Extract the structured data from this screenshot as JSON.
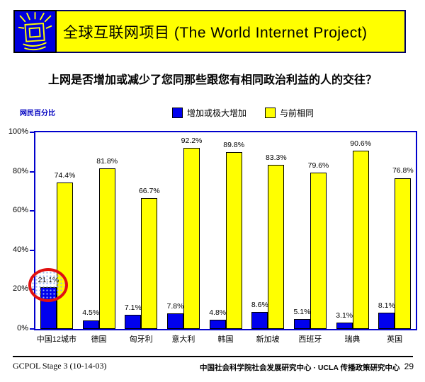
{
  "slide": {
    "header": {
      "title": "全球互联网项目 (The World Internet Project)",
      "logo_icon": "monitor-with-rays"
    },
    "question": "上网是否增加或减少了您同那些跟您有相同政治利益的人的交往？",
    "footer": {
      "left": "GCPOL Stage 3 (10-14-03)",
      "center": "中国社会科学院社会发展研究中心 · UCLA 传播政策研究中心",
      "page_number": "29"
    }
  },
  "chart_data": {
    "type": "bar",
    "title": "",
    "ylabel": "网民百分比",
    "xlabel": "",
    "categories": [
      "中国12城市",
      "德国",
      "匈牙利",
      "意大利",
      "韩国",
      "新加坡",
      "西班牙",
      "瑞典",
      "英国"
    ],
    "series": [
      {
        "name": "增加或极大增加",
        "color": "#0000EE",
        "values": [
          21.1,
          4.5,
          7.1,
          7.8,
          4.8,
          8.6,
          5.1,
          3.1,
          8.1
        ]
      },
      {
        "name": "与前相同",
        "color": "#FFFF00",
        "values": [
          74.4,
          81.8,
          66.7,
          92.2,
          89.8,
          83.3,
          79.6,
          90.6,
          76.8
        ]
      }
    ],
    "ylim": [
      0,
      100
    ],
    "yticks": [
      "0%",
      "20%",
      "40%",
      "60%",
      "80%",
      "100%"
    ],
    "grid": false,
    "legend_position": "top",
    "value_labels": true,
    "annotation": {
      "type": "circle",
      "target_category": "中国12城市",
      "target_series": "增加或极大增加",
      "target_value": "21.1%",
      "color": "#E01010"
    }
  },
  "colors": {
    "banner_bg": "#FFFF00",
    "banner_border": "#000066",
    "logo_bg": "#0000DD",
    "logo_drawing": "#FFFF00",
    "bar_increase": "#0000EE",
    "bar_same": "#FFFF00",
    "plot_border": "#0000CC",
    "unit_label_text": "#0000C0",
    "highlight_circle": "#E01010"
  }
}
